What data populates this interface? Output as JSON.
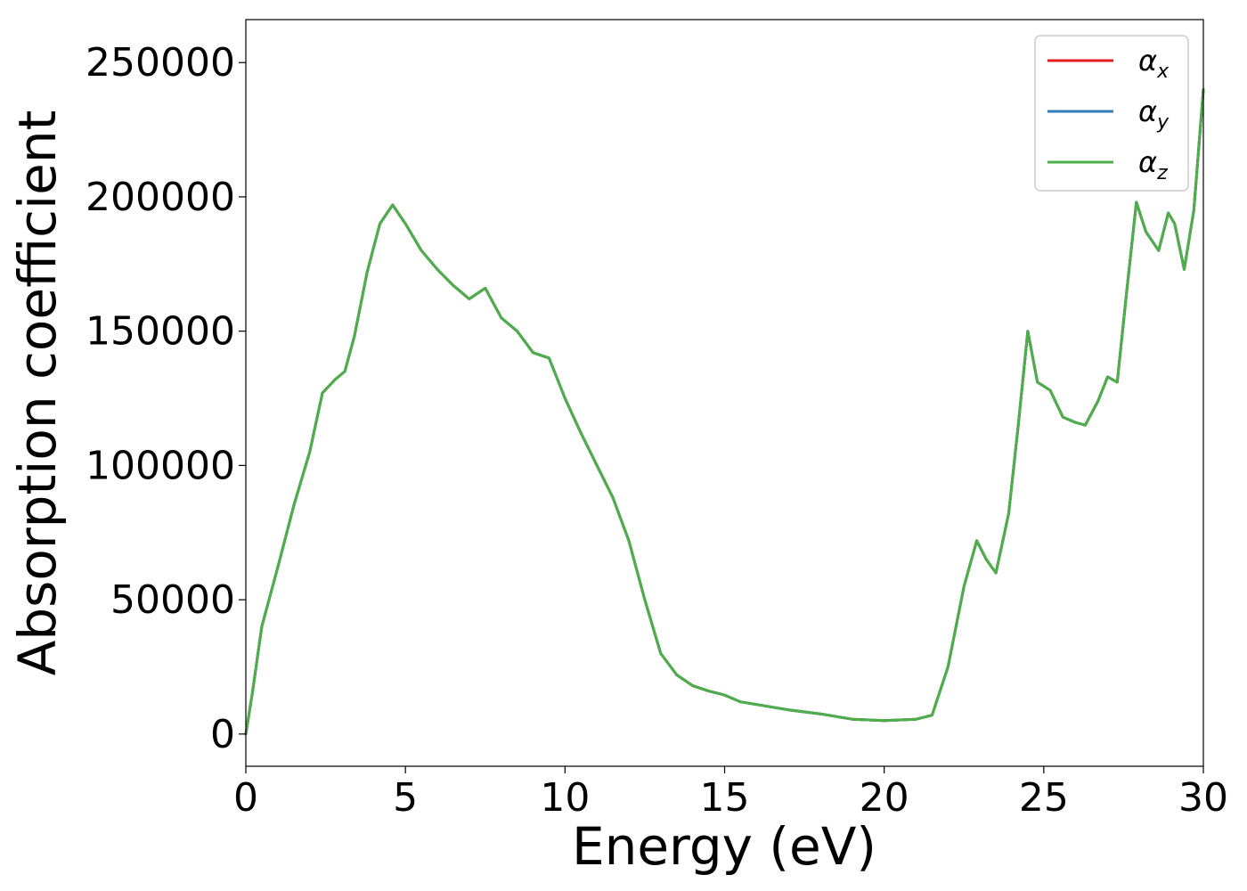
{
  "chart_data": {
    "type": "line",
    "xlabel": "Energy (eV)",
    "ylabel": "Absorption coefficient",
    "xlim": [
      0,
      30
    ],
    "ylim": [
      -12000,
      266000
    ],
    "xticks": [
      0,
      5,
      10,
      15,
      20,
      25,
      30
    ],
    "yticks": [
      0,
      50000,
      100000,
      150000,
      200000,
      250000
    ],
    "legend_position": "top-right",
    "grid": false,
    "x": [
      0,
      0.2,
      0.5,
      1.0,
      1.5,
      2.0,
      2.4,
      2.8,
      3.1,
      3.4,
      3.8,
      4.2,
      4.6,
      5.0,
      5.5,
      6.0,
      6.5,
      7.0,
      7.5,
      8.0,
      8.5,
      9.0,
      9.5,
      10.0,
      10.5,
      11.0,
      11.5,
      12.0,
      12.5,
      13.0,
      13.5,
      14.0,
      14.5,
      15.0,
      15.5,
      16.0,
      17.0,
      18.0,
      19.0,
      20.0,
      21.0,
      21.5,
      22.0,
      22.5,
      22.9,
      23.2,
      23.5,
      23.9,
      24.2,
      24.5,
      24.8,
      25.2,
      25.6,
      26.0,
      26.3,
      26.7,
      27.0,
      27.3,
      27.6,
      27.9,
      28.2,
      28.6,
      28.9,
      29.1,
      29.4,
      29.7,
      30.0
    ],
    "series": [
      {
        "name": "αx",
        "color": "#e41a1c",
        "values": [
          0,
          15000,
          40000,
          62000,
          85000,
          105000,
          127000,
          132000,
          135000,
          148000,
          172000,
          190000,
          197000,
          190000,
          180000,
          173000,
          167000,
          162000,
          166000,
          155000,
          150000,
          142000,
          140000,
          125000,
          112000,
          100000,
          88000,
          72000,
          50000,
          30000,
          22000,
          18000,
          16000,
          14500,
          12000,
          11000,
          9000,
          7500,
          5500,
          5000,
          5500,
          7000,
          25000,
          55000,
          72000,
          65000,
          60000,
          82000,
          115000,
          150000,
          131000,
          128000,
          118000,
          116000,
          115000,
          124000,
          133000,
          131000,
          165000,
          198000,
          187000,
          180000,
          194000,
          190000,
          173000,
          195000,
          240000
        ]
      },
      {
        "name": "αy",
        "color": "#377eb8",
        "values": [
          0,
          15000,
          40000,
          62000,
          85000,
          105000,
          127000,
          132000,
          135000,
          148000,
          172000,
          190000,
          197000,
          190000,
          180000,
          173000,
          167000,
          162000,
          166000,
          155000,
          150000,
          142000,
          140000,
          125000,
          112000,
          100000,
          88000,
          72000,
          50000,
          30000,
          22000,
          18000,
          16000,
          14500,
          12000,
          11000,
          9000,
          7500,
          5500,
          5000,
          5500,
          7000,
          25000,
          55000,
          72000,
          65000,
          60000,
          82000,
          115000,
          150000,
          131000,
          128000,
          118000,
          116000,
          115000,
          124000,
          133000,
          131000,
          165000,
          198000,
          187000,
          180000,
          194000,
          190000,
          173000,
          195000,
          240000
        ]
      },
      {
        "name": "αz",
        "color": "#4daf4a",
        "values": [
          0,
          15000,
          40000,
          62000,
          85000,
          105000,
          127000,
          132000,
          135000,
          148000,
          172000,
          190000,
          197000,
          190000,
          180000,
          173000,
          167000,
          162000,
          166000,
          155000,
          150000,
          142000,
          140000,
          125000,
          112000,
          100000,
          88000,
          72000,
          50000,
          30000,
          22000,
          18000,
          16000,
          14500,
          12000,
          11000,
          9000,
          7500,
          5500,
          5000,
          5500,
          7000,
          25000,
          55000,
          72000,
          65000,
          60000,
          82000,
          115000,
          150000,
          131000,
          128000,
          118000,
          116000,
          115000,
          124000,
          133000,
          131000,
          165000,
          198000,
          187000,
          180000,
          194000,
          190000,
          173000,
          195000,
          240000
        ]
      }
    ],
    "legend": [
      {
        "symbol": "α",
        "subscript": "x"
      },
      {
        "symbol": "α",
        "subscript": "y"
      },
      {
        "symbol": "α",
        "subscript": "z"
      }
    ]
  }
}
